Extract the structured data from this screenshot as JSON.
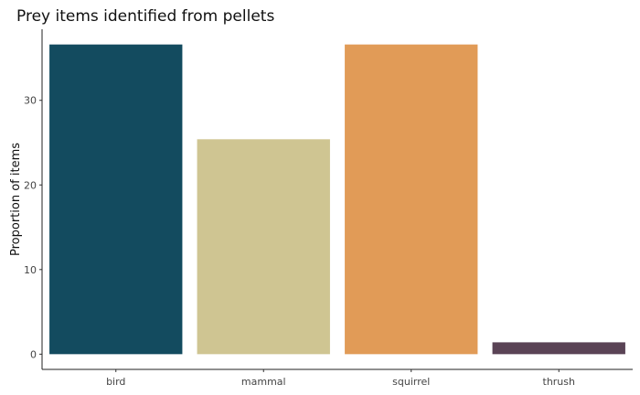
{
  "chart_data": {
    "type": "bar",
    "title": "Prey items identified from pellets",
    "xlabel": "",
    "ylabel": "Proportion of items",
    "categories": [
      "bird",
      "mammal",
      "squirrel",
      "thrush"
    ],
    "values": [
      36.6,
      25.4,
      36.6,
      1.4
    ],
    "colors": [
      "#134b5f",
      "#cfc592",
      "#e19b57",
      "#5a4355"
    ],
    "yticks": [
      0,
      10,
      20,
      30
    ],
    "ylim": [
      -1.8,
      38.4
    ],
    "grid": false,
    "legend": "none"
  }
}
